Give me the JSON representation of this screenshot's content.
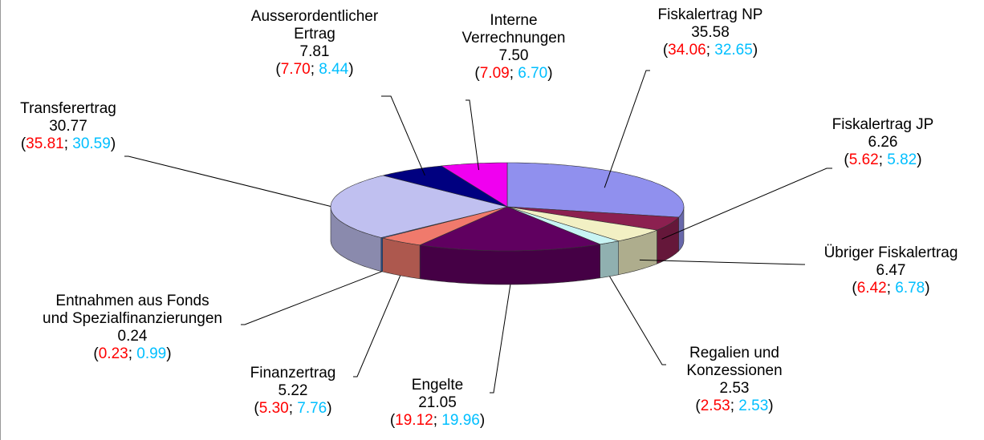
{
  "chart_data": {
    "type": "pie3d",
    "categories": [
      "Fiskalertrag NP",
      "Fiskalertrag JP",
      "Übriger Fiskalertrag",
      "Regalien und\nKonzessionen",
      "Engelte",
      "Finanzertrag",
      "Entnahmen aus Fonds\nund Spezialfinanzierungen",
      "Transferertrag",
      "Ausserordentlicher\nErtrag",
      "Interne\nVerrechnungen"
    ],
    "colors": [
      "#9090ee",
      "#8c2050",
      "#f2f0c4",
      "#c8f4f4",
      "#600060",
      "#f07a6c",
      "#2f6fd0",
      "#c0c0f0",
      "#000080",
      "#f000f0"
    ],
    "series": [
      {
        "color": "#000000",
        "values": [
          35.58,
          6.26,
          6.47,
          2.53,
          21.05,
          5.22,
          0.24,
          30.77,
          7.81,
          7.5
        ],
        "value_labels": [
          "35.58",
          "6.26",
          "6.47",
          "2.53",
          "21.05",
          "5.22",
          "0.24",
          "30.77",
          "7.81",
          "7.50"
        ]
      },
      {
        "color": "#ff0000",
        "values": [
          34.06,
          5.62,
          6.42,
          2.53,
          19.12,
          5.3,
          0.23,
          35.81,
          7.7,
          7.09
        ],
        "value_labels": [
          "34.06",
          "5.62",
          "6.42",
          "2.53",
          "19.12",
          "5.30",
          "0.23",
          "35.81",
          "7.70",
          "7.09"
        ]
      },
      {
        "color": "#00bfff",
        "values": [
          32.65,
          5.82,
          6.78,
          2.53,
          19.96,
          7.76,
          0.99,
          30.59,
          8.44,
          6.7
        ],
        "value_labels": [
          "32.65",
          "5.82",
          "6.78",
          "2.53",
          "19.96",
          "7.76",
          "0.99",
          "30.59",
          "8.44",
          "6.70"
        ]
      }
    ],
    "bracket_open": "(",
    "separator": "; ",
    "bracket_close": ")"
  }
}
